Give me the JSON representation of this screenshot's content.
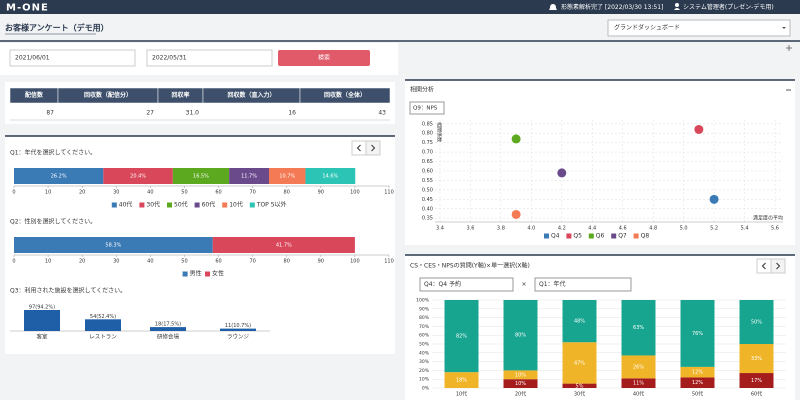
{
  "header": {
    "logo": "M-ONE",
    "notice": "形態素解析完了 [2022/03/30 13:51]",
    "user": "システム管理者(プレゼン-デモ用)"
  },
  "page": {
    "title": "お客様アンケート（デモ用）",
    "dashboard_select": "グランドダッシュボード",
    "date_from": "2021/06/01",
    "date_to": "2022/05/31",
    "search_button": "検索"
  },
  "summary_table": {
    "headers": [
      "配信数",
      "回収数（配信分）",
      "回収率",
      "回収数（直入力）",
      "回収数（全体）"
    ],
    "rows": [
      [
        "87",
        "27",
        "31.0",
        "16",
        "43"
      ]
    ]
  },
  "q1": {
    "type": "bar",
    "orientation": "horizontal",
    "stacked": true,
    "title": "Q1：年代を選択してください。",
    "series": [
      {
        "name": "40代",
        "color": "#3a7ab5",
        "values": [
          26.2
        ],
        "value_labels": [
          "26.2%"
        ]
      },
      {
        "name": "30代",
        "color": "#d9475a",
        "values": [
          20.4
        ],
        "value_labels": [
          "20.4%"
        ]
      },
      {
        "name": "50代",
        "color": "#5ca81e",
        "values": [
          16.5
        ],
        "value_labels": [
          "16.5%"
        ]
      },
      {
        "name": "60代",
        "color": "#6b4a8c",
        "values": [
          11.7
        ],
        "value_labels": [
          "11.7%"
        ]
      },
      {
        "name": "10代",
        "color": "#f47a55",
        "values": [
          10.7
        ],
        "value_labels": [
          "10.7%"
        ]
      },
      {
        "name": "TOP 5以外",
        "color": "#2cc5b5",
        "values": [
          14.6
        ],
        "value_labels": [
          "14.6%"
        ]
      }
    ],
    "xlim": [
      0,
      110
    ],
    "xticks": [
      0,
      10,
      20,
      30,
      40,
      50,
      60,
      70,
      80,
      90,
      100,
      110
    ]
  },
  "q2": {
    "type": "bar",
    "orientation": "horizontal",
    "stacked": true,
    "title": "Q2：性別を選択してください。",
    "series": [
      {
        "name": "男性",
        "color": "#3a7ab5",
        "values": [
          58.3
        ],
        "value_labels": [
          "58.3%"
        ]
      },
      {
        "name": "女性",
        "color": "#d9475a",
        "values": [
          41.7
        ],
        "value_labels": [
          "41.7%"
        ]
      }
    ],
    "xlim": [
      0,
      110
    ],
    "xticks": [
      0,
      10,
      20,
      30,
      40,
      50,
      60,
      70,
      80,
      90,
      100,
      110
    ]
  },
  "q3": {
    "type": "bar",
    "title": "Q3：利用された施設を選択してください。",
    "categories": [
      "客室",
      "レストラン",
      "研修会場",
      "ラウンジ"
    ],
    "values": [
      97,
      54,
      18,
      11
    ],
    "value_labels": [
      "97(94.2%)",
      "54(52.4%)",
      "18(17.5%)",
      "11(10.7%)"
    ],
    "color": "#1f5fa8"
  },
  "correlation": {
    "title": "相関分析",
    "select": "Q9：NPS",
    "chart": {
      "type": "scatter",
      "x_label": "満足度の平均",
      "y_label": "相関係数",
      "series": [
        {
          "name": "Q4",
          "color": "#3a7ab5",
          "x": [
            5.2
          ],
          "values": [
            0.45
          ]
        },
        {
          "name": "Q5",
          "color": "#d9475a",
          "x": [
            5.1
          ],
          "values": [
            0.82
          ]
        },
        {
          "name": "Q6",
          "color": "#5ca81e",
          "x": [
            3.9
          ],
          "values": [
            0.77
          ]
        },
        {
          "name": "Q7",
          "color": "#6b4a8c",
          "x": [
            4.2
          ],
          "values": [
            0.59
          ]
        },
        {
          "name": "Q8",
          "color": "#f47a55",
          "x": [
            3.9
          ],
          "values": [
            0.37
          ]
        }
      ],
      "xlim": [
        3.4,
        5.6
      ],
      "xticks": [
        3.4,
        3.6,
        3.8,
        {
          "value": 4,
          "label": "4.0"
        },
        4.2,
        4.4,
        4.6,
        4.8,
        {
          "value": 5,
          "label": "5.0"
        },
        5.2,
        5.4,
        5.6
      ],
      "ylim": [
        0.33,
        0.87
      ],
      "yticks": [
        0.35,
        {
          "value": 0.4,
          "label": "0.40"
        },
        0.45,
        {
          "value": 0.5,
          "label": "0.50"
        },
        0.55,
        {
          "value": 0.6,
          "label": "0.60"
        },
        0.65,
        {
          "value": 0.7,
          "label": "0.70"
        },
        0.75,
        {
          "value": 0.8,
          "label": "0.80"
        },
        0.85
      ],
      "grid": true
    }
  },
  "cross": {
    "title": "CS・CES・NPSの質問(Y軸)×単一選択(X軸)",
    "select_y": "Q4：Q4 予約",
    "times": "×",
    "select_x": "Q1：年代",
    "chart": {
      "type": "bar",
      "stacked": true,
      "categories": [
        "10代",
        "20代",
        "30代",
        "40代",
        "50代",
        "60代"
      ],
      "series": [
        {
          "color": "#a51c1c",
          "values": [
            0,
            10,
            5,
            11,
            12,
            17
          ],
          "value_labels": [
            null,
            "10%",
            "5%",
            "11%",
            "12%",
            "17%"
          ]
        },
        {
          "color": "#f0b429",
          "values": [
            18,
            10,
            47,
            26,
            12,
            33
          ],
          "value_labels": [
            "18%",
            "10%",
            "47%",
            "26%",
            "12%",
            "33%"
          ]
        },
        {
          "color": "#17a58f",
          "values": [
            82,
            80,
            48,
            63,
            76,
            50
          ],
          "value_labels": [
            "82%",
            "80%",
            "48%",
            "63%",
            "76%",
            "50%"
          ]
        }
      ],
      "ylim": [
        0,
        100
      ],
      "yticks": [
        {
          "value": 0,
          "label": "0%"
        },
        {
          "value": 10,
          "label": "10%"
        },
        {
          "value": 20,
          "label": "20%"
        },
        {
          "value": 30,
          "label": "30%"
        },
        {
          "value": 40,
          "label": "40%"
        },
        {
          "value": 50,
          "label": "50%"
        },
        {
          "value": 60,
          "label": "60%"
        },
        {
          "value": 70,
          "label": "70%"
        },
        {
          "value": 80,
          "label": "80%"
        },
        {
          "value": 90,
          "label": "90%"
        },
        {
          "value": 100,
          "label": "100%"
        }
      ],
      "grid": true
    }
  }
}
